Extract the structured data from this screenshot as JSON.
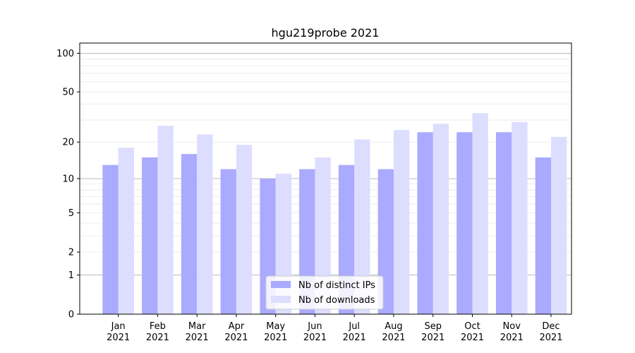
{
  "chart_data": {
    "type": "bar",
    "title": "hgu219probe 2021",
    "xlabel": "",
    "ylabel": "",
    "y_scale": "log(1+y)",
    "ylim": [
      0,
      120
    ],
    "y_ticks": [
      0,
      1,
      2,
      5,
      10,
      20,
      50,
      100
    ],
    "y_tick_labels": [
      "0",
      "1",
      "2",
      "5",
      "10",
      "20",
      "50",
      "100"
    ],
    "grid": "horizontal",
    "legend_position": "bottom-center",
    "categories": [
      {
        "month": "Jan",
        "year": "2021"
      },
      {
        "month": "Feb",
        "year": "2021"
      },
      {
        "month": "Mar",
        "year": "2021"
      },
      {
        "month": "Apr",
        "year": "2021"
      },
      {
        "month": "May",
        "year": "2021"
      },
      {
        "month": "Jun",
        "year": "2021"
      },
      {
        "month": "Jul",
        "year": "2021"
      },
      {
        "month": "Aug",
        "year": "2021"
      },
      {
        "month": "Sep",
        "year": "2021"
      },
      {
        "month": "Oct",
        "year": "2021"
      },
      {
        "month": "Nov",
        "year": "2021"
      },
      {
        "month": "Dec",
        "year": "2021"
      }
    ],
    "series": [
      {
        "name": "Nb of distinct IPs",
        "color": "#aaaaff",
        "values": [
          13,
          15,
          16,
          12,
          10,
          12,
          13,
          12,
          24,
          24,
          24,
          15
        ]
      },
      {
        "name": "Nb of downloads",
        "color": "#ddddff",
        "values": [
          18,
          27,
          23,
          19,
          11,
          15,
          21,
          25,
          28,
          34,
          29,
          22
        ]
      }
    ]
  }
}
